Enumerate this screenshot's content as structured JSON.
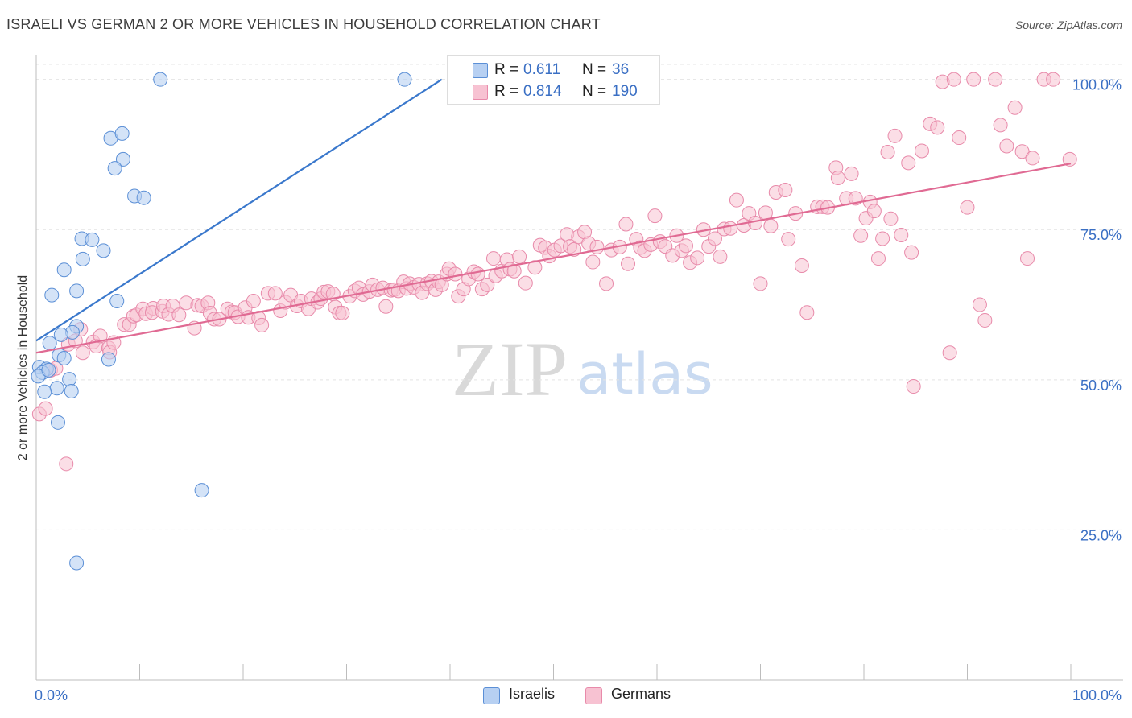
{
  "title": "ISRAELI VS GERMAN 2 OR MORE VEHICLES IN HOUSEHOLD CORRELATION CHART",
  "source": "Source: ZipAtlas.com",
  "watermark": {
    "zip": "ZIP",
    "atlas": "atlas"
  },
  "legend_top": {
    "rows": [
      {
        "r_label": "R =",
        "r_value": "0.611",
        "n_label": "N =",
        "n_value": "36"
      },
      {
        "r_label": "R =",
        "r_value": "0.814",
        "n_label": "N =",
        "n_value": "190"
      }
    ]
  },
  "legend_bottom": {
    "israelis": "Israelis",
    "germans": "Germans"
  },
  "colors": {
    "israelis_fill": "#b7d0f2",
    "israelis_stroke": "#5b8fd6",
    "israelis_line": "#3a78cc",
    "germans_fill": "#f7c2d2",
    "germans_stroke": "#e88aaa",
    "germans_line": "#e06a93",
    "value_text": "#3a6fc4",
    "grid": "#e4e4e4"
  },
  "chart_data": {
    "type": "scatter",
    "title": "ISRAELI VS GERMAN 2 OR MORE VEHICLES IN HOUSEHOLD CORRELATION CHART",
    "xlabel": "",
    "ylabel": "2 or more Vehicles in Household",
    "xlim": [
      0,
      100
    ],
    "ylim": [
      0,
      102.5
    ],
    "x_tick_labels": [
      "0.0%",
      "100.0%"
    ],
    "y_ticks": [
      25,
      50,
      75,
      100
    ],
    "y_tick_labels": [
      "25.0%",
      "50.0%",
      "75.0%",
      "100.0%"
    ],
    "grid": true,
    "legend_position": "top-center",
    "series": [
      {
        "name": "Israelis",
        "R": 0.611,
        "N": 36,
        "trend": {
          "x": [
            0,
            39.2
          ],
          "y": [
            56.5,
            100
          ]
        },
        "points": [
          [
            12.0,
            100
          ],
          [
            35.6,
            100
          ],
          [
            43.9,
            100
          ],
          [
            7.2,
            90.2
          ],
          [
            8.3,
            91
          ],
          [
            8.4,
            86.7
          ],
          [
            7.6,
            85.2
          ],
          [
            9.5,
            80.6
          ],
          [
            10.4,
            80.3
          ],
          [
            4.4,
            73.5
          ],
          [
            5.4,
            73.3
          ],
          [
            6.5,
            71.5
          ],
          [
            4.5,
            70.1
          ],
          [
            2.7,
            68.3
          ],
          [
            3.9,
            64.8
          ],
          [
            1.5,
            64.1
          ],
          [
            7.8,
            63.1
          ],
          [
            3.9,
            58.9
          ],
          [
            3.5,
            57.9
          ],
          [
            2.4,
            57.5
          ],
          [
            1.3,
            56.1
          ],
          [
            2.2,
            54.1
          ],
          [
            2.7,
            53.6
          ],
          [
            7.0,
            53.4
          ],
          [
            0.3,
            52.1
          ],
          [
            1.0,
            51.8
          ],
          [
            0.6,
            51.2
          ],
          [
            0.2,
            50.6
          ],
          [
            3.2,
            50.1
          ],
          [
            2.0,
            48.6
          ],
          [
            0.8,
            48.0
          ],
          [
            3.4,
            48.1
          ],
          [
            2.1,
            42.9
          ],
          [
            16.0,
            31.6
          ],
          [
            3.9,
            19.5
          ],
          [
            1.2,
            51.6
          ]
        ]
      },
      {
        "name": "Germans",
        "R": 0.814,
        "N": 190,
        "trend": {
          "x": [
            0,
            100
          ],
          "y": [
            54.5,
            86
          ]
        },
        "points": [
          [
            0.3,
            44.3
          ],
          [
            0.9,
            45.2
          ],
          [
            2.9,
            36.0
          ],
          [
            1.4,
            51.6
          ],
          [
            1.9,
            51.9
          ],
          [
            3.1,
            55.9
          ],
          [
            3.8,
            56.5
          ],
          [
            4.5,
            54.5
          ],
          [
            4.3,
            58.4
          ],
          [
            5.5,
            56.3
          ],
          [
            5.8,
            55.6
          ],
          [
            6.2,
            57.3
          ],
          [
            7.0,
            55.3
          ],
          [
            7.1,
            54.6
          ],
          [
            7.5,
            56.2
          ],
          [
            8.5,
            59.2
          ],
          [
            9.0,
            59.2
          ],
          [
            9.4,
            60.6
          ],
          [
            9.7,
            60.8
          ],
          [
            10.3,
            61.8
          ],
          [
            10.6,
            61.0
          ],
          [
            11.3,
            61.9
          ],
          [
            11.2,
            61.2
          ],
          [
            12.2,
            61.4
          ],
          [
            12.3,
            62.3
          ],
          [
            12.8,
            60.9
          ],
          [
            13.2,
            62.3
          ],
          [
            13.8,
            60.8
          ],
          [
            14.5,
            62.8
          ],
          [
            15.3,
            58.6
          ],
          [
            15.6,
            62.4
          ],
          [
            16.0,
            62.3
          ],
          [
            16.6,
            62.8
          ],
          [
            16.8,
            61.1
          ],
          [
            17.2,
            60.1
          ],
          [
            17.7,
            60.1
          ],
          [
            18.5,
            61.8
          ],
          [
            18.9,
            61.3
          ],
          [
            19.2,
            61.2
          ],
          [
            19.5,
            60.5
          ],
          [
            20.2,
            62.0
          ],
          [
            20.5,
            60.4
          ],
          [
            21.0,
            63.1
          ],
          [
            21.5,
            60.3
          ],
          [
            21.8,
            59.1
          ],
          [
            22.4,
            64.4
          ],
          [
            23.1,
            64.4
          ],
          [
            23.6,
            61.5
          ],
          [
            24.1,
            62.9
          ],
          [
            24.6,
            64.1
          ],
          [
            25.2,
            62.3
          ],
          [
            25.6,
            63.1
          ],
          [
            26.3,
            61.8
          ],
          [
            26.6,
            63.5
          ],
          [
            27.2,
            62.9
          ],
          [
            27.5,
            63.5
          ],
          [
            27.8,
            64.6
          ],
          [
            28.2,
            64.7
          ],
          [
            28.7,
            64.3
          ],
          [
            28.9,
            62.1
          ],
          [
            29.3,
            61.1
          ],
          [
            29.6,
            61.1
          ],
          [
            30.3,
            63.9
          ],
          [
            30.8,
            64.8
          ],
          [
            31.2,
            65.3
          ],
          [
            31.6,
            64.2
          ],
          [
            32.2,
            64.7
          ],
          [
            32.5,
            65.8
          ],
          [
            33.0,
            65.0
          ],
          [
            33.5,
            65.3
          ],
          [
            33.8,
            62.2
          ],
          [
            34.3,
            64.9
          ],
          [
            34.6,
            65.0
          ],
          [
            35.0,
            64.8
          ],
          [
            35.5,
            66.3
          ],
          [
            35.8,
            65.2
          ],
          [
            36.1,
            66.0
          ],
          [
            36.5,
            65.4
          ],
          [
            37.0,
            65.9
          ],
          [
            37.3,
            64.5
          ],
          [
            37.8,
            66.0
          ],
          [
            38.2,
            66.4
          ],
          [
            38.6,
            65.0
          ],
          [
            38.9,
            66.3
          ],
          [
            39.2,
            65.8
          ],
          [
            39.7,
            67.6
          ],
          [
            39.9,
            68.5
          ],
          [
            40.5,
            67.6
          ],
          [
            40.8,
            63.9
          ],
          [
            41.3,
            65.1
          ],
          [
            41.8,
            66.8
          ],
          [
            42.3,
            68.0
          ],
          [
            42.7,
            67.6
          ],
          [
            43.1,
            65.1
          ],
          [
            43.6,
            65.8
          ],
          [
            44.2,
            70.2
          ],
          [
            44.4,
            67.3
          ],
          [
            45.0,
            68.1
          ],
          [
            45.5,
            70.0
          ],
          [
            45.8,
            68.4
          ],
          [
            46.2,
            68.1
          ],
          [
            46.7,
            70.5
          ],
          [
            47.3,
            66.1
          ],
          [
            48.2,
            68.7
          ],
          [
            48.7,
            72.4
          ],
          [
            49.2,
            72.0
          ],
          [
            49.6,
            70.6
          ],
          [
            50.1,
            71.6
          ],
          [
            50.7,
            72.3
          ],
          [
            51.3,
            74.2
          ],
          [
            51.6,
            72.2
          ],
          [
            52.0,
            71.7
          ],
          [
            52.4,
            73.8
          ],
          [
            53.0,
            74.6
          ],
          [
            53.4,
            72.7
          ],
          [
            53.8,
            69.6
          ],
          [
            54.2,
            72.1
          ],
          [
            55.1,
            66.0
          ],
          [
            55.6,
            71.6
          ],
          [
            56.4,
            72.1
          ],
          [
            57.0,
            75.9
          ],
          [
            57.2,
            69.3
          ],
          [
            58.0,
            73.4
          ],
          [
            58.4,
            72.0
          ],
          [
            58.8,
            71.5
          ],
          [
            59.4,
            72.5
          ],
          [
            59.8,
            77.3
          ],
          [
            60.3,
            73.0
          ],
          [
            60.8,
            72.2
          ],
          [
            61.5,
            70.7
          ],
          [
            61.9,
            74.0
          ],
          [
            62.4,
            71.5
          ],
          [
            62.8,
            72.3
          ],
          [
            63.2,
            69.5
          ],
          [
            63.9,
            70.3
          ],
          [
            64.5,
            75.0
          ],
          [
            65.0,
            72.2
          ],
          [
            65.6,
            73.5
          ],
          [
            66.1,
            70.5
          ],
          [
            66.5,
            75.1
          ],
          [
            67.1,
            75.2
          ],
          [
            67.7,
            79.9
          ],
          [
            68.4,
            75.7
          ],
          [
            68.9,
            77.7
          ],
          [
            69.5,
            76.1
          ],
          [
            70.0,
            66.0
          ],
          [
            70.5,
            77.8
          ],
          [
            71.0,
            75.6
          ],
          [
            71.5,
            81.2
          ],
          [
            72.4,
            81.6
          ],
          [
            72.7,
            73.4
          ],
          [
            73.4,
            77.7
          ],
          [
            74.0,
            69.0
          ],
          [
            74.5,
            61.2
          ],
          [
            75.5,
            78.8
          ],
          [
            76.0,
            78.8
          ],
          [
            76.5,
            78.7
          ],
          [
            77.3,
            85.3
          ],
          [
            77.5,
            83.6
          ],
          [
            78.3,
            80.2
          ],
          [
            78.8,
            84.3
          ],
          [
            79.2,
            80.2
          ],
          [
            79.7,
            74.0
          ],
          [
            80.2,
            76.9
          ],
          [
            80.6,
            79.6
          ],
          [
            81.0,
            78.1
          ],
          [
            81.4,
            70.2
          ],
          [
            81.8,
            73.5
          ],
          [
            82.3,
            87.9
          ],
          [
            82.6,
            76.8
          ],
          [
            83.0,
            90.6
          ],
          [
            83.6,
            74.1
          ],
          [
            84.3,
            86.1
          ],
          [
            84.6,
            71.2
          ],
          [
            84.8,
            48.9
          ],
          [
            85.6,
            88.1
          ],
          [
            86.4,
            92.6
          ],
          [
            87.1,
            92.0
          ],
          [
            87.6,
            99.6
          ],
          [
            88.3,
            54.5
          ],
          [
            88.7,
            100
          ],
          [
            89.2,
            90.3
          ],
          [
            90.0,
            78.7
          ],
          [
            90.6,
            100
          ],
          [
            91.2,
            62.5
          ],
          [
            91.7,
            59.9
          ],
          [
            92.7,
            100
          ],
          [
            93.2,
            92.4
          ],
          [
            93.8,
            88.9
          ],
          [
            94.6,
            95.3
          ],
          [
            95.3,
            88.0
          ],
          [
            95.8,
            70.2
          ],
          [
            96.3,
            86.9
          ],
          [
            97.4,
            100
          ],
          [
            98.3,
            100
          ],
          [
            99.9,
            86.7
          ]
        ]
      }
    ]
  }
}
